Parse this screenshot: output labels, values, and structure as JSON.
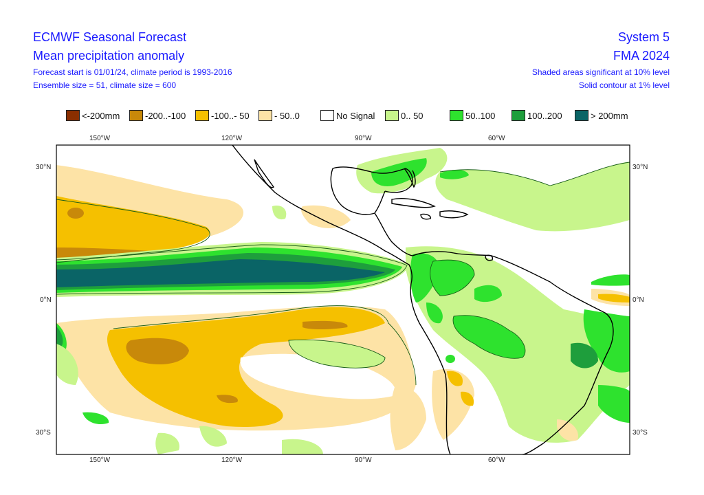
{
  "header": {
    "title": "ECMWF Seasonal Forecast",
    "subtitle": "Mean precipitation anomaly",
    "line3": "Forecast start is 01/01/24, climate period is 1993-2016",
    "line4": "Ensemble size = 51, climate size = 600",
    "system": "System 5",
    "period": "FMA 2024",
    "sig1": "Shaded areas significant at 10% level",
    "sig2": "Solid contour at 1% level"
  },
  "legend": [
    {
      "label": "<-200mm",
      "color": "#8b2f00"
    },
    {
      "label": "-200..-100",
      "color": "#c8890a"
    },
    {
      "label": "-100..- 50",
      "color": "#f5c000"
    },
    {
      "label": "- 50..0",
      "color": "#fde3a6"
    },
    {
      "label": "No Signal",
      "color": "#ffffff"
    },
    {
      "label": "0.. 50",
      "color": "#c8f58c"
    },
    {
      "label": "50..100",
      "color": "#2ee22e"
    },
    {
      "label": "100..200",
      "color": "#1e9e3c"
    },
    {
      "label": "> 200mm",
      "color": "#0a6466"
    }
  ],
  "axes": {
    "top_lon": [
      "150°W",
      "120°W",
      "90°W",
      "60°W"
    ],
    "bottom_lon": [
      "150°W",
      "120°W",
      "90°W",
      "60°W"
    ],
    "left_lat": [
      "30°N",
      "0°N",
      "30°S"
    ],
    "right_lat": [
      "30°N",
      "0°N",
      "30°S"
    ]
  }
}
